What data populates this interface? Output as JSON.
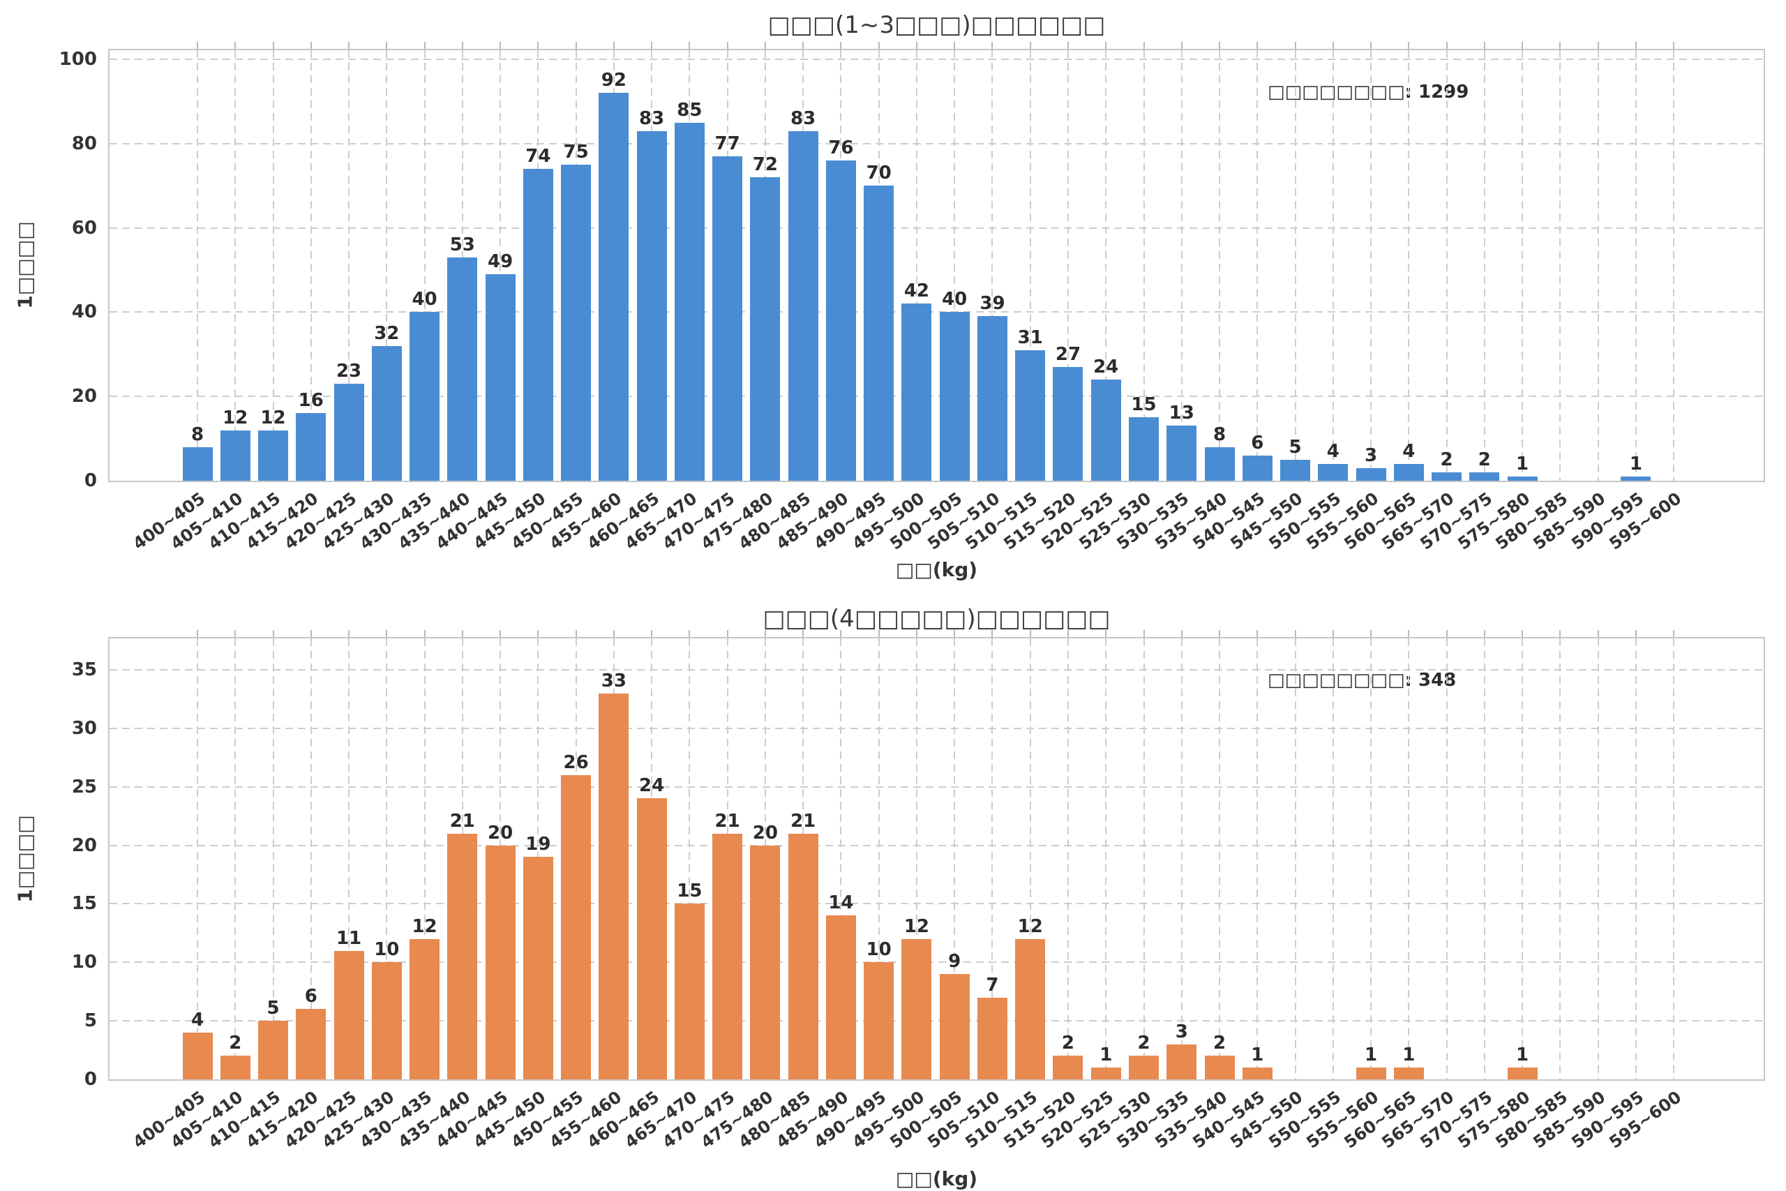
{
  "figure": {
    "background": "#ffffff",
    "grid_color": "#cdcdcd",
    "spine_color": "#c6c6c6",
    "text_color": "#333333"
  },
  "chart_data": [
    {
      "type": "bar",
      "title": "□□□(1~3□□□)□□□□□□",
      "ylabel": "1□□□□",
      "xlabel": "□□(kg)",
      "annotation": "□□□□□□□□: 1299",
      "total": 1299,
      "bar_color": "#4a8cd3",
      "ylim": [
        0,
        100
      ],
      "yticks": [
        0,
        20,
        40,
        60,
        80,
        100
      ],
      "grid": "dashed",
      "legend": "none",
      "categories": [
        "400~405",
        "405~410",
        "410~415",
        "415~420",
        "420~425",
        "425~430",
        "430~435",
        "435~440",
        "440~445",
        "445~450",
        "450~455",
        "455~460",
        "460~465",
        "465~470",
        "470~475",
        "475~480",
        "480~485",
        "485~490",
        "490~495",
        "495~500",
        "500~505",
        "505~510",
        "510~515",
        "515~520",
        "520~525",
        "525~530",
        "530~535",
        "535~540",
        "540~545",
        "545~550",
        "550~555",
        "555~560",
        "560~565",
        "565~570",
        "570~575",
        "575~580",
        "580~585",
        "585~590",
        "590~595",
        "595~600"
      ],
      "values": [
        8,
        12,
        12,
        16,
        23,
        32,
        40,
        53,
        49,
        74,
        75,
        92,
        83,
        85,
        77,
        72,
        83,
        76,
        70,
        42,
        40,
        39,
        31,
        27,
        24,
        15,
        13,
        8,
        6,
        5,
        4,
        3,
        4,
        2,
        2,
        1,
        0,
        0,
        1,
        0
      ]
    },
    {
      "type": "bar",
      "title": "□□□(4□□□□□)□□□□□□",
      "ylabel": "1□□□□",
      "xlabel": "□□(kg)",
      "annotation": "□□□□□□□□: 348",
      "total": 348,
      "bar_color": "#e8894f",
      "ylim": [
        0,
        35
      ],
      "yticks": [
        0,
        5,
        10,
        15,
        20,
        25,
        30,
        35
      ],
      "grid": "dashed",
      "legend": "none",
      "categories": [
        "400~405",
        "405~410",
        "410~415",
        "415~420",
        "420~425",
        "425~430",
        "430~435",
        "435~440",
        "440~445",
        "445~450",
        "450~455",
        "455~460",
        "460~465",
        "465~470",
        "470~475",
        "475~480",
        "480~485",
        "485~490",
        "490~495",
        "495~500",
        "500~505",
        "505~510",
        "510~515",
        "515~520",
        "520~525",
        "525~530",
        "530~535",
        "535~540",
        "540~545",
        "545~550",
        "550~555",
        "555~560",
        "560~565",
        "565~570",
        "570~575",
        "575~580",
        "580~585",
        "585~590",
        "590~595",
        "595~600"
      ],
      "values": [
        4,
        2,
        5,
        6,
        11,
        10,
        12,
        21,
        20,
        19,
        26,
        33,
        24,
        15,
        21,
        20,
        21,
        14,
        10,
        12,
        9,
        7,
        12,
        2,
        1,
        2,
        3,
        2,
        1,
        0,
        0,
        1,
        1,
        0,
        0,
        1,
        0,
        0,
        0,
        0
      ]
    }
  ]
}
